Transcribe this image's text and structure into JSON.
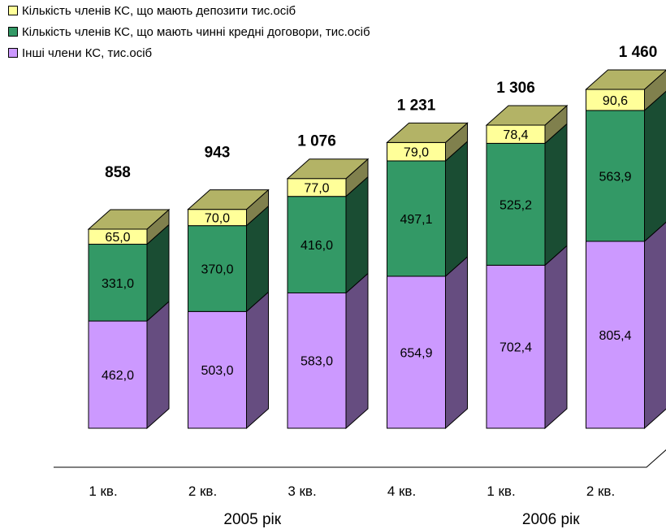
{
  "chart_data": {
    "type": "bar",
    "stacked": true,
    "three_d": true,
    "categories": [
      "1 кв.",
      "2 кв.",
      "3 кв.",
      "4 кв.",
      "1 кв.",
      "2 кв."
    ],
    "groups": [
      {
        "label": "2005 рік",
        "span": [
          0,
          3
        ]
      },
      {
        "label": "2006 рік",
        "span": [
          4,
          5
        ]
      }
    ],
    "series": [
      {
        "name": "Інші члени КС, тис.осіб",
        "color": "#cc99ff",
        "side_color": "#664d80",
        "values": [
          462.0,
          503.0,
          583.0,
          654.9,
          702.4,
          805.4
        ],
        "labels": [
          "462,0",
          "503,0",
          "583,0",
          "654,9",
          "702,4",
          "805,4"
        ]
      },
      {
        "name": "Кількість членів КС, що мають чинні кредні договори, тис.осіб",
        "color": "#339966",
        "side_color": "#1a4d33",
        "values": [
          331.0,
          370.0,
          416.0,
          497.1,
          525.2,
          563.9
        ],
        "labels": [
          "331,0",
          "370,0",
          "416,0",
          "497,1",
          "525,2",
          "563,9"
        ]
      },
      {
        "name": "Кількість членів КС, що мають депозити тис.осіб",
        "color": "#ffff99",
        "side_color": "#80804d",
        "values": [
          65.0,
          70.0,
          77.0,
          79.0,
          78.4,
          90.6
        ],
        "labels": [
          "65,0",
          "70,0",
          "77,0",
          "79,0",
          "78,4",
          "90,6"
        ]
      }
    ],
    "totals": [
      858,
      943,
      1076,
      1231,
      1306,
      1460
    ],
    "total_labels": [
      "858",
      "943",
      "1 076",
      "1 231",
      "1 306",
      "1 460"
    ],
    "legend_order": [
      2,
      1,
      0
    ],
    "legend_position": "top-left",
    "grid": false
  }
}
